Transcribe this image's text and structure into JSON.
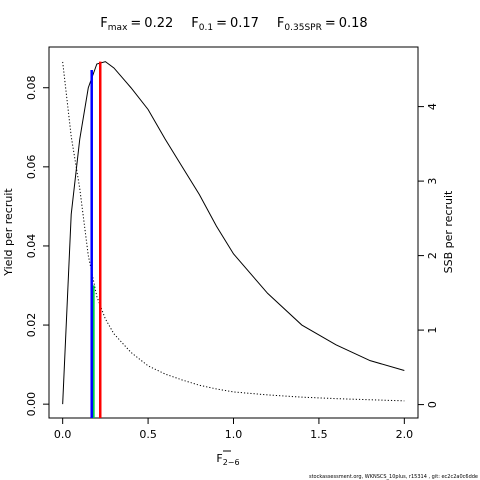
{
  "chart_data": {
    "type": "line",
    "title_items": [
      {
        "symbol": "F",
        "subscript": "max",
        "relation": "=",
        "value": 0.22
      },
      {
        "symbol": "F",
        "subscript": "0.1",
        "relation": "=",
        "value": 0.17
      },
      {
        "symbol": "F",
        "subscript": "0.35SPR",
        "relation": "=",
        "value": 0.18
      }
    ],
    "xlabel": "F",
    "xlabel_subscript": "2−6",
    "ylabel": "Yield per recruit",
    "y2label": "SSB per recruit",
    "footer": "stockassessment.org, WKNSCS_10plus, r15314 , git: ec2c2a0c6dde",
    "x": [
      0,
      0.05,
      0.1,
      0.15,
      0.2,
      0.25,
      0.3,
      0.4,
      0.5,
      0.6,
      0.7,
      0.8,
      0.9,
      1.0,
      1.2,
      1.4,
      1.6,
      1.8,
      2.0
    ],
    "series": [
      {
        "name": "Yield per recruit",
        "color": "#000000",
        "dash": "solid",
        "axis": "y",
        "values": [
          0,
          0.048,
          0.067,
          0.08,
          0.086,
          0.0866,
          0.085,
          0.08,
          0.0745,
          0.067,
          0.06,
          0.053,
          0.045,
          0.038,
          0.028,
          0.02,
          0.015,
          0.011,
          0.0085
        ]
      },
      {
        "name": "SSB per recruit",
        "color": "#000000",
        "dash": "dotted",
        "axis": "y2",
        "values": [
          4.6,
          3.6,
          2.9,
          2.0,
          1.45,
          1.15,
          0.95,
          0.7,
          0.52,
          0.41,
          0.33,
          0.26,
          0.21,
          0.17,
          0.13,
          0.1,
          0.08,
          0.065,
          0.05
        ]
      }
    ],
    "reference_lines": [
      {
        "x": 0.18,
        "y": 1.6,
        "axis": "y2",
        "color": "#00cc44"
      },
      {
        "x": 0.17,
        "y": 0.0845,
        "axis": "y",
        "color": "#0000ff"
      },
      {
        "x": 0.22,
        "y": 0.0866,
        "axis": "y",
        "color": "#ff0000"
      }
    ],
    "xlim": [
      -0.08,
      2.08
    ],
    "xticks": [
      {
        "value": 0,
        "label": "0.0"
      },
      {
        "value": 0.5,
        "label": "0.5"
      },
      {
        "value": 1,
        "label": "1.0"
      },
      {
        "value": 1.5,
        "label": "1.5"
      },
      {
        "value": 2,
        "label": "2.0"
      }
    ],
    "ylim": [
      -0.0035,
      0.0903
    ],
    "yticks": [
      {
        "value": 0,
        "label": "0.00"
      },
      {
        "value": 0.02,
        "label": "0.02"
      },
      {
        "value": 0.04,
        "label": "0.04"
      },
      {
        "value": 0.06,
        "label": "0.06"
      },
      {
        "value": 0.08,
        "label": "0.08"
      }
    ],
    "y2lim": [
      -0.18,
      4.8
    ],
    "y2ticks": [
      0,
      1,
      2,
      3,
      4
    ]
  }
}
